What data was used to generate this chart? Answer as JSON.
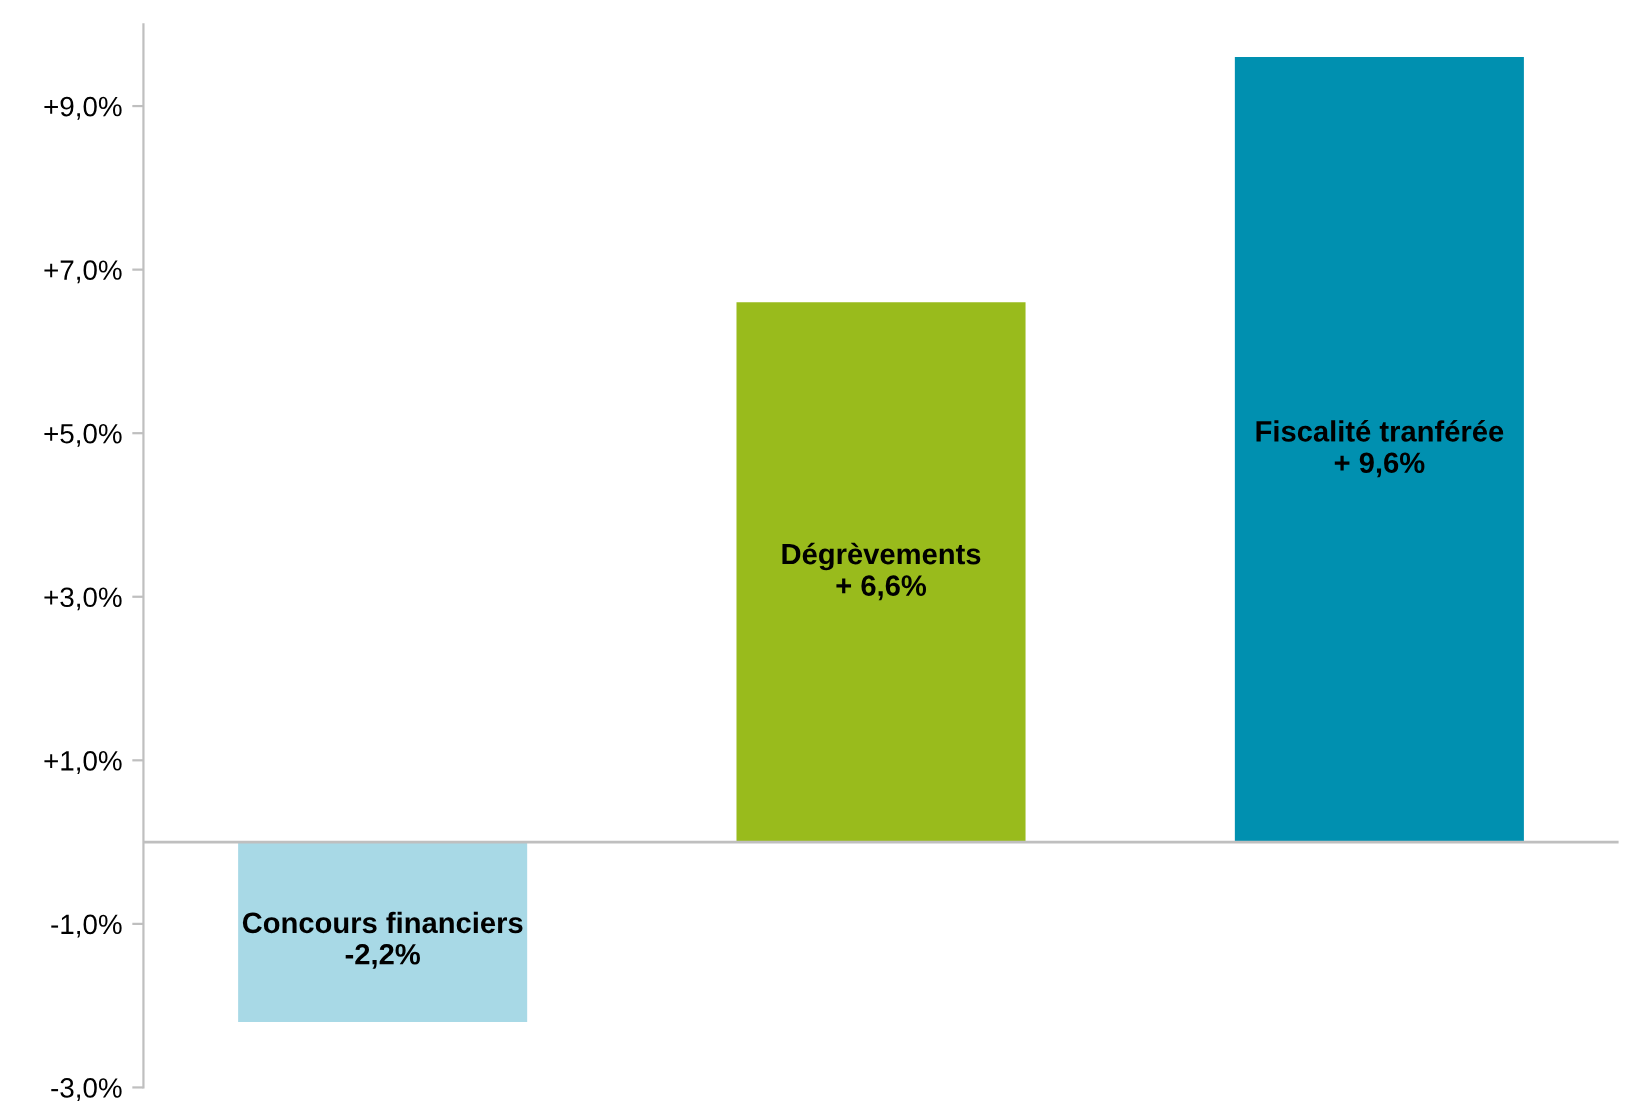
{
  "chart_data": {
    "type": "bar",
    "categories": [
      "Concours financiers",
      "Dégrèvements",
      "Fiscalité tranférée"
    ],
    "values": [
      -2.2,
      6.6,
      9.6
    ],
    "colors": [
      "#a8d9e6",
      "#99bb1c",
      "#0090b0"
    ],
    "value_labels": [
      "-2,2%",
      "+ 6,6%",
      "+ 9,6%"
    ],
    "ylim": [
      -3,
      10
    ],
    "yticks": [
      {
        "value": -3,
        "label": "-3,0%"
      },
      {
        "value": -1,
        "label": "-1,0%"
      },
      {
        "value": 1,
        "label": "+1,0%"
      },
      {
        "value": 3,
        "label": "+3,0%"
      },
      {
        "value": 5,
        "label": "+5,0%"
      },
      {
        "value": 7,
        "label": "+7,0%"
      },
      {
        "value": 9,
        "label": "+9,0%"
      }
    ],
    "grid": false,
    "legend": false
  }
}
